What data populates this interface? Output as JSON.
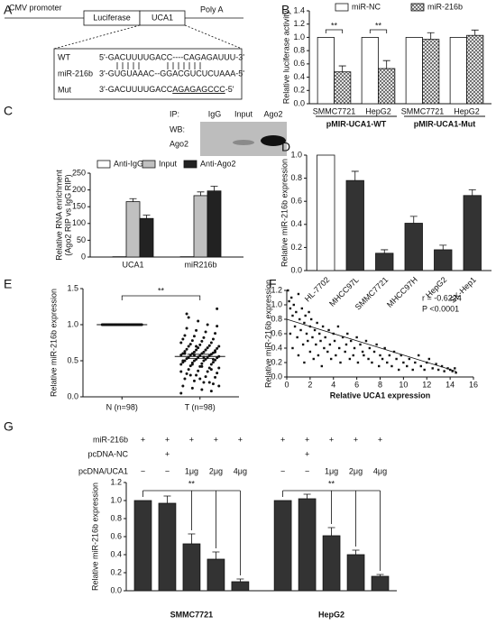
{
  "panel_labels": [
    "A",
    "B",
    "C",
    "D",
    "E",
    "F",
    "G"
  ],
  "diagram": {
    "construct": [
      "CMV promoter",
      "Luciferase",
      "UCA1",
      "Poly A"
    ],
    "rows": [
      {
        "label": "WT",
        "sequence": [
          "5'-GACUUUUGACC----CAGAGAUUU-3'"
        ]
      },
      {
        "label": "miR-216b",
        "sequence": [
          "3'-GUGUAAAC--GGACGUCUCUAAA-5'"
        ]
      },
      {
        "label": "Mut",
        "sequence": [
          "3'-GACUUUUGACC",
          "AGAGAGCCC",
          "-5'"
        ]
      }
    ]
  },
  "blot": {
    "ip_label": "IP:",
    "lanes": [
      "IgG",
      "Input",
      "Ago2"
    ],
    "wb_label": "WB:",
    "wb_target": "Ago2"
  },
  "chart_data": [
    {
      "type": "bar",
      "ylabel": "Relative luciferase activity",
      "categories": [
        "SMMC7721",
        "HepG2",
        "SMMC7721",
        "HepG2"
      ],
      "group_labels": [
        "pMIR-UCA1-WT",
        "pMIR-UCA1-Mut"
      ],
      "series": [
        {
          "name": "miR-NC",
          "color": "#ffffff",
          "values": [
            1,
            1,
            1,
            1
          ]
        },
        {
          "name": "miR-216b",
          "color": "#555555",
          "hatch": true,
          "values": [
            0.48,
            0.53,
            0.97,
            1.03
          ],
          "errors": [
            0.09,
            0.12,
            0.1,
            0.08
          ]
        }
      ],
      "ylim": [
        0,
        1.4
      ],
      "yticks": [
        {
          "value": 0,
          "label": "0.0"
        },
        {
          "value": 0.2,
          "label": "0.2"
        },
        {
          "value": 0.4,
          "label": "0.4"
        },
        {
          "value": 0.6,
          "label": "0.6"
        },
        {
          "value": 0.8,
          "label": "0.8"
        },
        {
          "value": 1,
          "label": "1.0"
        },
        {
          "value": 1.2,
          "label": "1.2"
        },
        {
          "value": 1.4,
          "label": "1.4"
        }
      ],
      "annotations": [
        "**",
        "**"
      ]
    },
    {
      "type": "bar",
      "ylabel": [
        "Relative RNA enrichment",
        "(Ago2 RIP vs IgG RIP)"
      ],
      "categories": [
        "UCA1",
        "miR216b"
      ],
      "series": [
        {
          "name": "Anti-IgG",
          "color": "#ffffff",
          "values": [
            1,
            1
          ]
        },
        {
          "name": "Input",
          "color": "#c0c0c0",
          "values": [
            165,
            183
          ],
          "errors": [
            9,
            11
          ]
        },
        {
          "name": "Anti-Ago2",
          "color": "#222222",
          "values": [
            115,
            197
          ],
          "errors": [
            10,
            14
          ]
        }
      ],
      "ylim": [
        0,
        250
      ],
      "yticks": [
        0,
        50,
        100,
        150,
        200,
        250
      ]
    },
    {
      "type": "bar",
      "ylabel": "Relative miR-216b expression",
      "categories": [
        "HL-7702",
        "MHCC97L",
        "SMMC7721",
        "MHCC97H",
        "HepG2",
        "SK-Hep1"
      ],
      "series": [
        {
          "colors": [
            "#ffffff",
            "#333333",
            "#333333",
            "#333333",
            "#333333",
            "#333333"
          ],
          "values": [
            1,
            0.78,
            0.15,
            0.41,
            0.18,
            0.65
          ],
          "errors": [
            null,
            0.08,
            0.03,
            0.06,
            0.04,
            0.05
          ]
        }
      ],
      "ylim": [
        0,
        1
      ],
      "yticks": [
        {
          "value": 0,
          "label": "0.0"
        },
        {
          "value": 0.2,
          "label": "0.2"
        },
        {
          "value": 0.4,
          "label": "0.4"
        },
        {
          "value": 0.6,
          "label": "0.6"
        },
        {
          "value": 0.8,
          "label": "0.8"
        },
        {
          "value": 1,
          "label": "1.0"
        }
      ]
    },
    {
      "type": "strip",
      "ylabel": "Relative miR-216b expression",
      "categories": [
        "N (n=98)",
        "T (n=98)"
      ],
      "values": [
        [
          1,
          1,
          1,
          1,
          1,
          1,
          1,
          1,
          1,
          1,
          1,
          1,
          1,
          1,
          1,
          1,
          1,
          1,
          1,
          1,
          1,
          1,
          1,
          1,
          1,
          1,
          1,
          1,
          1,
          1,
          1,
          1,
          1,
          1,
          1,
          1,
          1,
          1,
          1,
          1,
          1,
          1,
          1,
          1,
          1,
          1,
          1,
          1,
          1,
          1,
          1,
          1,
          1,
          1,
          1,
          1,
          1,
          1,
          1,
          1,
          1,
          1,
          1,
          1,
          1,
          1,
          1,
          1,
          1,
          1,
          1,
          1,
          1,
          1,
          1,
          1,
          1,
          1,
          1,
          1,
          1,
          1,
          1,
          1,
          1,
          1,
          1,
          1,
          1,
          1,
          1,
          1,
          1,
          1,
          1,
          1,
          1,
          1
        ],
        [
          0.05,
          0.08,
          0.1,
          0.12,
          0.15,
          0.18,
          0.2,
          0.22,
          0.25,
          0.27,
          0.28,
          0.3,
          0.32,
          0.33,
          0.35,
          0.36,
          0.38,
          0.4,
          0.4,
          0.42,
          0.43,
          0.45,
          0.45,
          0.46,
          0.47,
          0.48,
          0.48,
          0.5,
          0.5,
          0.5,
          0.51,
          0.52,
          0.52,
          0.53,
          0.54,
          0.55,
          0.55,
          0.55,
          0.56,
          0.57,
          0.57,
          0.58,
          0.58,
          0.59,
          0.6,
          0.6,
          0.6,
          0.61,
          0.62,
          0.62,
          0.63,
          0.64,
          0.65,
          0.65,
          0.66,
          0.67,
          0.68,
          0.68,
          0.7,
          0.7,
          0.71,
          0.72,
          0.73,
          0.75,
          0.75,
          0.77,
          0.78,
          0.8,
          0.8,
          0.82,
          0.84,
          0.85,
          0.88,
          0.9,
          0.92,
          0.95,
          0.98,
          1,
          1.05,
          1.1,
          0.15,
          0.2,
          0.25,
          0.3,
          0.35,
          0.38,
          0.42,
          0.45,
          0.5,
          0.52,
          0.55,
          0.58,
          0.6,
          0.62,
          0.65,
          0.7,
          1.15,
          1.22
        ]
      ],
      "means": [
        1,
        0.56
      ],
      "sems": [
        null,
        0.03
      ],
      "ylim": [
        0,
        1.5
      ],
      "yticks": [
        {
          "value": 0,
          "label": "0.0"
        },
        {
          "value": 0.5,
          "label": "0.5"
        },
        {
          "value": 1,
          "label": "1.0"
        },
        {
          "value": 1.5,
          "label": "1.5"
        }
      ],
      "annotations": [
        "**"
      ]
    },
    {
      "type": "scatter",
      "ylabel": "Relative miR-216b expression",
      "xlabel": "Relative UCA1 expression",
      "x": [
        0.1,
        0.2,
        0.3,
        0.3,
        0.4,
        0.5,
        0.5,
        0.6,
        0.7,
        0.8,
        0.9,
        1.0,
        1.0,
        1.1,
        1.2,
        1.3,
        1.4,
        1.5,
        1.5,
        1.6,
        1.7,
        1.8,
        1.9,
        2.0,
        2.0,
        2.1,
        2.2,
        2.3,
        2.4,
        2.5,
        2.6,
        2.7,
        2.8,
        2.9,
        3.0,
        3.1,
        3.2,
        3.3,
        3.5,
        3.6,
        3.7,
        3.8,
        4.0,
        4.1,
        4.2,
        4.4,
        4.5,
        4.6,
        4.8,
        5.0,
        5.1,
        5.2,
        5.4,
        5.5,
        5.7,
        5.8,
        6.0,
        6.1,
        6.3,
        6.5,
        6.6,
        6.8,
        7.0,
        7.1,
        7.3,
        7.5,
        7.7,
        7.9,
        8.0,
        8.2,
        8.4,
        8.6,
        8.8,
        9.0,
        9.2,
        9.4,
        9.6,
        9.8,
        10.0,
        10.3,
        10.5,
        10.8,
        11.0,
        11.3,
        11.5,
        11.8,
        12.0,
        12.2,
        12.5,
        12.8,
        13.0,
        13.3,
        13.5,
        13.8,
        14.0,
        14.2,
        14.4,
        14.5
      ],
      "y": [
        1.2,
        1.05,
        0.95,
        0.6,
        1.1,
        0.85,
        0.4,
        1.0,
        0.7,
        0.9,
        0.55,
        1.15,
        0.3,
        0.8,
        0.65,
        0.95,
        0.45,
        0.75,
        0.2,
        0.85,
        0.6,
        0.5,
        0.9,
        0.35,
        0.7,
        0.8,
        0.55,
        0.25,
        0.65,
        0.45,
        0.75,
        0.3,
        0.6,
        0.5,
        0.15,
        0.7,
        0.4,
        0.55,
        0.35,
        0.65,
        0.45,
        0.25,
        0.6,
        0.5,
        0.3,
        0.7,
        0.4,
        0.2,
        0.55,
        0.35,
        0.45,
        0.6,
        0.25,
        0.5,
        0.3,
        0.4,
        0.55,
        0.2,
        0.45,
        0.35,
        0.3,
        0.5,
        0.25,
        0.4,
        0.2,
        0.35,
        0.45,
        0.15,
        0.3,
        0.25,
        0.4,
        0.2,
        0.3,
        0.15,
        0.35,
        0.25,
        0.1,
        0.3,
        0.2,
        0.15,
        0.25,
        0.1,
        0.2,
        0.3,
        0.15,
        0.1,
        0.2,
        0.25,
        0.12,
        0.18,
        0.1,
        0.15,
        0.08,
        0.12,
        0.1,
        0.08,
        0.12,
        0.06
      ],
      "fit": {
        "x": [
          0,
          14.5
        ],
        "y": [
          0.8,
          0.08
        ]
      },
      "xlim": [
        0,
        16
      ],
      "xticks": [
        0,
        2,
        4,
        6,
        8,
        10,
        12,
        14,
        16
      ],
      "ylim": [
        0,
        1.2
      ],
      "yticks": [
        {
          "value": 0,
          "label": "0.0"
        },
        {
          "value": 0.2,
          "label": "0.2"
        },
        {
          "value": 0.4,
          "label": "0.4"
        },
        {
          "value": 0.6,
          "label": "0.6"
        },
        {
          "value": 0.8,
          "label": "0.8"
        },
        {
          "value": 1,
          "label": "1.0"
        },
        {
          "value": 1.2,
          "label": "1.2"
        }
      ],
      "annotations": [
        "r = -0.6224",
        "P <0.0001"
      ]
    },
    {
      "type": "bar",
      "ylabel": "Relative miR-216b expression",
      "categories": [
        null,
        null,
        null,
        null,
        null,
        null,
        null,
        null,
        null,
        null
      ],
      "group_labels": [
        "SMMC7721",
        "HepG2"
      ],
      "conditions": [
        {
          "label": "miR-216b",
          "values": [
            "+",
            "+",
            "+",
            "+",
            "+",
            "+",
            "+",
            "+",
            "+",
            "+"
          ]
        },
        {
          "label": "pcDNA-NC",
          "values": [
            null,
            "+",
            null,
            null,
            null,
            null,
            "+",
            null,
            null,
            null
          ]
        },
        {
          "label": "pcDNA/UCA1",
          "values": [
            "−",
            "−",
            "1μg",
            "2μg",
            "4μg",
            "−",
            "−",
            "1μg",
            "2μg",
            "4μg"
          ]
        }
      ],
      "series": [
        {
          "color": "#333333",
          "values": [
            1,
            0.97,
            0.52,
            0.35,
            0.1,
            1,
            1.02,
            0.61,
            0.4,
            0.16
          ],
          "errors": [
            null,
            0.08,
            0.11,
            0.08,
            0.03,
            null,
            0.05,
            0.09,
            0.05,
            0.02
          ]
        }
      ],
      "ylim": [
        0,
        1.2
      ],
      "yticks": [
        {
          "value": 0,
          "label": "0.0"
        },
        {
          "value": 0.2,
          "label": "0.2"
        },
        {
          "value": 0.4,
          "label": "0.4"
        },
        {
          "value": 0.6,
          "label": "0.6"
        },
        {
          "value": 0.8,
          "label": "0.8"
        },
        {
          "value": 1,
          "label": "1.0"
        },
        {
          "value": 1.2,
          "label": "1.2"
        }
      ],
      "annotations": [
        "**",
        "**"
      ]
    }
  ]
}
